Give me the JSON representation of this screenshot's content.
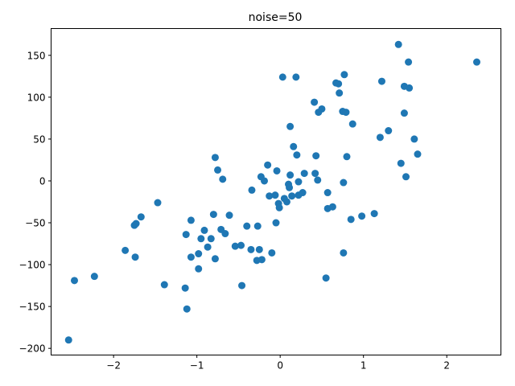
{
  "chart_data": {
    "type": "scatter",
    "title": "noise=50",
    "xlabel": "",
    "ylabel": "",
    "xlim": [
      -2.75,
      2.65
    ],
    "ylim": [
      -208,
      182
    ],
    "xticks": [
      -2,
      -1,
      0,
      1,
      2
    ],
    "xtick_labels": [
      "−2",
      "−1",
      "0",
      "1",
      "2"
    ],
    "yticks": [
      -200,
      -150,
      -100,
      -50,
      0,
      50,
      100,
      150
    ],
    "ytick_labels": [
      "−200",
      "−150",
      "−100",
      "−50",
      "0",
      "50",
      "100",
      "150"
    ],
    "grid": false,
    "legend": "none",
    "marker_color": "#1f77b4",
    "series": [
      {
        "points": [
          [
            -2.54,
            -190
          ],
          [
            -2.47,
            -119
          ],
          [
            -2.23,
            -114
          ],
          [
            -1.86,
            -83
          ],
          [
            -1.74,
            -91
          ],
          [
            -1.75,
            -53
          ],
          [
            -1.73,
            -51
          ],
          [
            -1.67,
            -43
          ],
          [
            -1.47,
            -26
          ],
          [
            -1.39,
            -124
          ],
          [
            -1.14,
            -128
          ],
          [
            -1.13,
            -64
          ],
          [
            -1.12,
            -153
          ],
          [
            -1.07,
            -47
          ],
          [
            -1.07,
            -91
          ],
          [
            -0.98,
            -105
          ],
          [
            -0.98,
            -87
          ],
          [
            -0.95,
            -69
          ],
          [
            -0.91,
            -59
          ],
          [
            -0.87,
            -79
          ],
          [
            -0.83,
            -69
          ],
          [
            -0.8,
            -40
          ],
          [
            -0.78,
            -93
          ],
          [
            -0.78,
            28
          ],
          [
            -0.75,
            13
          ],
          [
            -0.71,
            -58
          ],
          [
            -0.69,
            2
          ],
          [
            -0.66,
            -63
          ],
          [
            -0.61,
            -41
          ],
          [
            -0.54,
            -78
          ],
          [
            -0.47,
            -77
          ],
          [
            -0.46,
            -125
          ],
          [
            -0.4,
            -54
          ],
          [
            -0.35,
            -82
          ],
          [
            -0.34,
            -11
          ],
          [
            -0.28,
            -95
          ],
          [
            -0.27,
            -54
          ],
          [
            -0.25,
            -82
          ],
          [
            -0.23,
            5
          ],
          [
            -0.22,
            -94
          ],
          [
            -0.19,
            0
          ],
          [
            -0.15,
            19
          ],
          [
            -0.13,
            -18
          ],
          [
            -0.1,
            -86
          ],
          [
            -0.06,
            -17
          ],
          [
            -0.05,
            -50
          ],
          [
            -0.04,
            12
          ],
          [
            -0.02,
            -27
          ],
          [
            -0.01,
            -32
          ],
          [
            0.03,
            124
          ],
          [
            0.05,
            -21
          ],
          [
            0.08,
            -25
          ],
          [
            0.1,
            -4
          ],
          [
            0.11,
            -8
          ],
          [
            0.12,
            7
          ],
          [
            0.12,
            65
          ],
          [
            0.14,
            -18
          ],
          [
            0.16,
            41
          ],
          [
            0.19,
            124
          ],
          [
            0.2,
            31
          ],
          [
            0.22,
            -1
          ],
          [
            0.22,
            -17
          ],
          [
            0.27,
            -14
          ],
          [
            0.29,
            9
          ],
          [
            0.41,
            94
          ],
          [
            0.42,
            9
          ],
          [
            0.43,
            30
          ],
          [
            0.45,
            1
          ],
          [
            0.46,
            82
          ],
          [
            0.5,
            86
          ],
          [
            0.55,
            -116
          ],
          [
            0.57,
            -14
          ],
          [
            0.57,
            -33
          ],
          [
            0.63,
            -31
          ],
          [
            0.67,
            117
          ],
          [
            0.7,
            116
          ],
          [
            0.71,
            105
          ],
          [
            0.75,
            83
          ],
          [
            0.76,
            -2
          ],
          [
            0.76,
            -86
          ],
          [
            0.77,
            127
          ],
          [
            0.79,
            82
          ],
          [
            0.8,
            29
          ],
          [
            0.85,
            -46
          ],
          [
            0.87,
            68
          ],
          [
            0.98,
            -42
          ],
          [
            1.13,
            -39
          ],
          [
            1.2,
            52
          ],
          [
            1.22,
            119
          ],
          [
            1.3,
            60
          ],
          [
            1.42,
            163
          ],
          [
            1.45,
            21
          ],
          [
            1.49,
            81
          ],
          [
            1.49,
            113
          ],
          [
            1.51,
            5
          ],
          [
            1.54,
            142
          ],
          [
            1.55,
            111
          ],
          [
            1.61,
            50
          ],
          [
            1.65,
            32
          ],
          [
            2.36,
            142
          ]
        ]
      }
    ]
  }
}
